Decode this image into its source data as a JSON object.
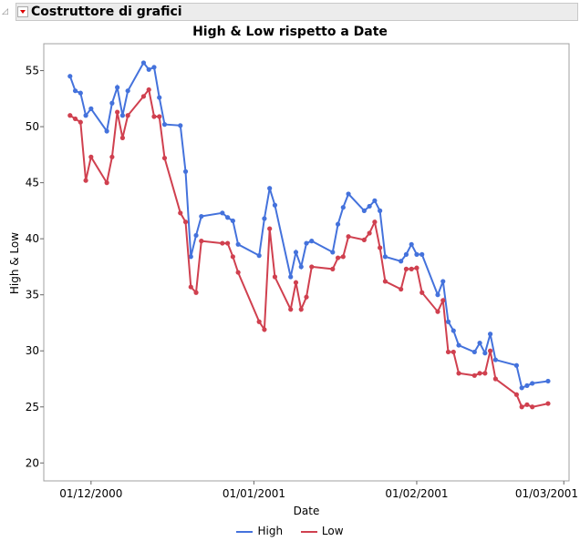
{
  "header": {
    "title": "Costruttore di grafici",
    "menu_icon": "red-triangle-menu-icon"
  },
  "chart_data": {
    "type": "line",
    "title": "High & Low rispetto a Date",
    "xlabel": "Date",
    "ylabel": "High & Low",
    "ylim": [
      18.4,
      57.4
    ],
    "xlim": [
      "22/11/2000",
      "02/03/2001"
    ],
    "yticks": [
      20,
      25,
      30,
      35,
      40,
      45,
      50,
      55
    ],
    "xticks": [
      "01/12/2000",
      "01/01/2001",
      "01/02/2001",
      "01/03/2001"
    ],
    "grid": false,
    "legend": "bottom",
    "x": [
      "27/11/2000",
      "28/11/2000",
      "29/11/2000",
      "30/11/2000",
      "01/12/2000",
      "04/12/2000",
      "05/12/2000",
      "06/12/2000",
      "07/12/2000",
      "08/12/2000",
      "11/12/2000",
      "12/12/2000",
      "13/12/2000",
      "14/12/2000",
      "15/12/2000",
      "18/12/2000",
      "19/12/2000",
      "20/12/2000",
      "21/12/2000",
      "22/12/2000",
      "26/12/2000",
      "27/12/2000",
      "28/12/2000",
      "29/12/2000",
      "02/01/2001",
      "03/01/2001",
      "04/01/2001",
      "05/01/2001",
      "08/01/2001",
      "09/01/2001",
      "10/01/2001",
      "11/01/2001",
      "12/01/2001",
      "16/01/2001",
      "17/01/2001",
      "18/01/2001",
      "19/01/2001",
      "22/01/2001",
      "23/01/2001",
      "24/01/2001",
      "25/01/2001",
      "26/01/2001",
      "29/01/2001",
      "30/01/2001",
      "31/01/2001",
      "01/02/2001",
      "02/02/2001",
      "05/02/2001",
      "06/02/2001",
      "07/02/2001",
      "08/02/2001",
      "09/02/2001",
      "12/02/2001",
      "13/02/2001",
      "14/02/2001",
      "15/02/2001",
      "16/02/2001",
      "20/02/2001",
      "21/02/2001",
      "22/02/2001",
      "23/02/2001",
      "26/02/2001"
    ],
    "series": [
      {
        "name": "High",
        "color": "#4472dc",
        "values": [
          54.5,
          53.2,
          53.0,
          51.0,
          51.6,
          49.6,
          52.1,
          53.5,
          51.0,
          53.2,
          55.7,
          55.1,
          55.3,
          52.6,
          50.2,
          50.1,
          46.0,
          38.4,
          40.3,
          42.0,
          42.3,
          41.9,
          41.6,
          39.5,
          38.5,
          41.8,
          44.5,
          43.0,
          36.6,
          38.8,
          37.5,
          39.6,
          39.8,
          38.8,
          41.3,
          42.8,
          44.0,
          42.5,
          42.9,
          43.4,
          42.5,
          38.4,
          38.0,
          38.6,
          39.5,
          38.6,
          38.6,
          35.0,
          36.2,
          32.6,
          31.8,
          30.5,
          29.9,
          30.7,
          29.8,
          31.5,
          29.2,
          28.7,
          26.7,
          26.9,
          27.1,
          27.3
        ]
      },
      {
        "name": "Low",
        "color": "#d0404f",
        "values": [
          51.0,
          50.7,
          50.4,
          45.2,
          47.3,
          45.0,
          47.3,
          51.3,
          49.0,
          51.0,
          52.7,
          53.3,
          50.9,
          50.9,
          47.2,
          42.3,
          41.5,
          35.7,
          35.2,
          39.8,
          39.6,
          39.6,
          38.4,
          37.0,
          32.6,
          31.9,
          40.9,
          36.6,
          33.7,
          36.1,
          33.7,
          34.8,
          37.5,
          37.3,
          38.3,
          38.4,
          40.2,
          39.9,
          40.5,
          41.5,
          39.2,
          36.2,
          35.5,
          37.3,
          37.3,
          37.4,
          35.2,
          33.5,
          34.5,
          29.9,
          29.9,
          28.0,
          27.8,
          28.0,
          28.0,
          30.0,
          27.5,
          26.1,
          25.0,
          25.2,
          25.0,
          25.3
        ]
      }
    ]
  }
}
